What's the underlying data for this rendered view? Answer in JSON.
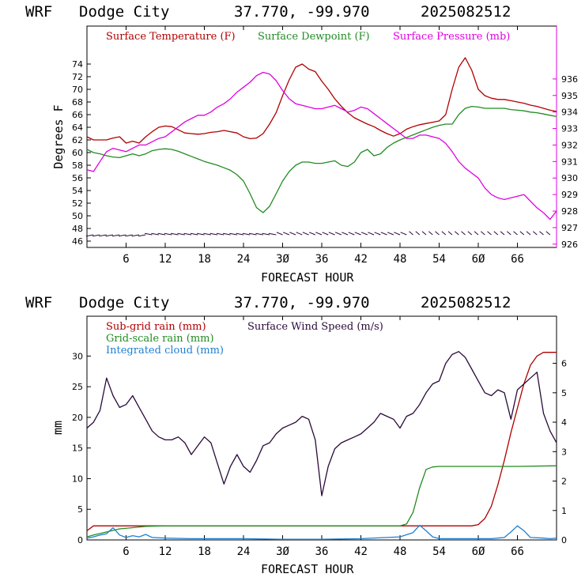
{
  "top_header": {
    "model": "WRF",
    "station": "Dodge City",
    "coords": "37.770, -99.970",
    "init": "2025082512"
  },
  "bottom_header": {
    "model": "WRF",
    "station": "Dodge City",
    "coords": "37.770, -99.970",
    "init": "2025082512"
  },
  "colors": {
    "temperature": "#b00000",
    "dewpoint": "#228b22",
    "pressure": "#e000e0",
    "wind": "#2a0a3a",
    "subgrid_rain": "#b00000",
    "gridscale_rain": "#228b22",
    "cloud": "#1e7fd0"
  },
  "chart_data": [
    {
      "type": "line",
      "xlabel": "FORECAST HOUR",
      "ylabel": "Degrees F",
      "xlim": [
        0,
        72
      ],
      "ylim": [
        45,
        80
      ],
      "y2lim": [
        925.8,
        939.2
      ],
      "xticks": [
        6,
        12,
        18,
        24,
        30,
        36,
        42,
        48,
        54,
        60,
        66
      ],
      "yticks": [
        46,
        48,
        50,
        52,
        54,
        56,
        58,
        60,
        62,
        64,
        66,
        68,
        70,
        72,
        74
      ],
      "y2ticks": [
        926,
        927,
        928,
        929,
        930,
        931,
        932,
        933,
        934,
        935,
        936
      ],
      "wind_barbs": "row of wind barbs along the bottom (y ~ 47 F)",
      "series": [
        {
          "name": "Surface Temperature (F)",
          "axis": "left",
          "x": [
            0,
            1,
            2,
            3,
            4,
            5,
            6,
            7,
            8,
            9,
            10,
            11,
            12,
            13,
            14,
            15,
            16,
            17,
            18,
            19,
            20,
            21,
            22,
            23,
            24,
            25,
            26,
            27,
            28,
            29,
            30,
            31,
            32,
            33,
            34,
            35,
            36,
            37,
            38,
            39,
            40,
            41,
            42,
            43,
            44,
            45,
            46,
            47,
            48,
            49,
            50,
            51,
            52,
            53,
            54,
            55,
            56,
            57,
            58,
            59,
            60,
            61,
            62,
            63,
            64,
            65,
            66,
            67,
            68,
            69,
            70,
            71,
            72
          ],
          "values": [
            62.5,
            62,
            62,
            62,
            62.3,
            62.5,
            61.5,
            61.8,
            61.5,
            62.5,
            63.3,
            64,
            64.2,
            64.1,
            63.6,
            63.1,
            63,
            62.9,
            63,
            63.2,
            63.3,
            63.5,
            63.3,
            63.1,
            62.5,
            62.2,
            62.3,
            63,
            64.5,
            66.3,
            69,
            71.5,
            73.5,
            74,
            73.2,
            72.8,
            71.3,
            70,
            68.5,
            67.3,
            66.3,
            65.5,
            65,
            64.5,
            64.1,
            63.5,
            63,
            62.6,
            63,
            63.7,
            64.1,
            64.4,
            64.6,
            64.8,
            65,
            66,
            70,
            73.5,
            75,
            73,
            70,
            69,
            68.6,
            68.4,
            68.4,
            68.2,
            68,
            67.8,
            67.5,
            67.3,
            67,
            66.7,
            66.5
          ]
        },
        {
          "name": "Surface Dewpoint (F)",
          "axis": "left",
          "x": [
            0,
            1,
            2,
            3,
            4,
            5,
            6,
            7,
            8,
            9,
            10,
            11,
            12,
            13,
            14,
            15,
            16,
            17,
            18,
            19,
            20,
            21,
            22,
            23,
            24,
            25,
            26,
            27,
            28,
            29,
            30,
            31,
            32,
            33,
            34,
            35,
            36,
            37,
            38,
            39,
            40,
            41,
            42,
            43,
            44,
            45,
            46,
            47,
            48,
            49,
            50,
            51,
            52,
            53,
            54,
            55,
            56,
            57,
            58,
            59,
            60,
            61,
            62,
            63,
            64,
            65,
            66,
            67,
            68,
            69,
            70,
            71,
            72
          ],
          "values": [
            60.5,
            60,
            59.8,
            59.5,
            59.3,
            59.2,
            59.5,
            59.8,
            59.5,
            59.8,
            60.3,
            60.5,
            60.6,
            60.5,
            60.2,
            59.8,
            59.4,
            59,
            58.6,
            58.3,
            58,
            57.6,
            57.2,
            56.5,
            55.5,
            53.5,
            51.3,
            50.5,
            51.5,
            53.5,
            55.5,
            57,
            58,
            58.5,
            58.5,
            58.3,
            58.3,
            58.5,
            58.7,
            58,
            57.8,
            58.5,
            60,
            60.5,
            59.5,
            59.8,
            60.8,
            61.5,
            62,
            62.4,
            62.8,
            63.2,
            63.6,
            64,
            64.3,
            64.5,
            64.5,
            66,
            67,
            67.3,
            67.2,
            67,
            67,
            67,
            67,
            66.8,
            66.7,
            66.6,
            66.4,
            66.3,
            66.1,
            65.9,
            65.7
          ]
        },
        {
          "name": "Surface Pressure (mb)",
          "axis": "right",
          "x": [
            0,
            1,
            2,
            3,
            4,
            5,
            6,
            7,
            8,
            9,
            10,
            11,
            12,
            13,
            14,
            15,
            16,
            17,
            18,
            19,
            20,
            21,
            22,
            23,
            24,
            25,
            26,
            27,
            28,
            29,
            30,
            31,
            32,
            33,
            34,
            35,
            36,
            37,
            38,
            39,
            40,
            41,
            42,
            43,
            44,
            45,
            46,
            47,
            48,
            49,
            50,
            51,
            52,
            53,
            54,
            55,
            56,
            57,
            58,
            59,
            60,
            61,
            62,
            63,
            64,
            65,
            66,
            67,
            68,
            69,
            70,
            71,
            72
          ],
          "values": [
            930.5,
            930.4,
            931,
            931.6,
            931.8,
            931.7,
            931.6,
            931.8,
            932,
            932,
            932.2,
            932.4,
            932.5,
            932.8,
            933.1,
            933.4,
            933.6,
            933.8,
            933.8,
            934,
            934.3,
            934.5,
            934.8,
            935.2,
            935.5,
            935.8,
            936.2,
            936.4,
            936.3,
            935.9,
            935.3,
            934.8,
            934.5,
            934.4,
            934.3,
            934.2,
            934.2,
            934.3,
            934.4,
            934.2,
            934,
            934.1,
            934.3,
            934.2,
            933.9,
            933.6,
            933.3,
            933,
            932.7,
            932.4,
            932.4,
            932.6,
            932.6,
            932.5,
            932.4,
            932.1,
            931.6,
            931,
            930.6,
            930.3,
            930,
            929.4,
            929,
            928.8,
            928.7,
            928.8,
            928.9,
            929,
            928.6,
            928.2,
            927.9,
            927.5,
            928
          ]
        }
      ]
    },
    {
      "type": "line",
      "xlabel": "FORECAST HOUR",
      "ylabel": "mm",
      "xlim": [
        0,
        72
      ],
      "ylim": [
        0,
        36.5
      ],
      "y2lim": [
        0,
        7.6
      ],
      "xticks": [
        6,
        12,
        18,
        24,
        30,
        36,
        42,
        48,
        54,
        60,
        66
      ],
      "yticks": [
        0,
        5,
        10,
        15,
        20,
        25,
        30
      ],
      "y2ticks": [
        0,
        1,
        2,
        3,
        4,
        5,
        6
      ],
      "series": [
        {
          "name": "Sub-grid rain (mm)",
          "axis": "left",
          "x": [
            0,
            1,
            2,
            3,
            6,
            10,
            20,
            30,
            40,
            48,
            56,
            59,
            60,
            61,
            62,
            63,
            64,
            65,
            66,
            67,
            68,
            69,
            70,
            71,
            72
          ],
          "values": [
            1.5,
            2.3,
            2.3,
            2.3,
            2.3,
            2.3,
            2.3,
            2.3,
            2.3,
            2.3,
            2.3,
            2.3,
            2.5,
            3.5,
            5.5,
            9,
            13,
            17.5,
            21.5,
            25.5,
            28.5,
            30,
            30.6,
            30.6,
            30.6
          ]
        },
        {
          "name": "Grid-scale rain (mm)",
          "axis": "left",
          "x": [
            0,
            1,
            3,
            5,
            7,
            9,
            12,
            20,
            30,
            40,
            48,
            49,
            50,
            51,
            52,
            53,
            54,
            56,
            60,
            66,
            72
          ],
          "values": [
            0.5,
            0.8,
            1.3,
            1.8,
            2,
            2.2,
            2.3,
            2.3,
            2.3,
            2.3,
            2.3,
            2.6,
            4.5,
            8.5,
            11.5,
            11.9,
            12,
            12,
            12,
            12,
            12.1
          ]
        },
        {
          "name": "Integrated cloud (mm)",
          "axis": "left",
          "x": [
            0,
            1,
            2,
            3,
            4,
            5,
            6,
            7,
            8,
            9,
            10,
            12,
            16,
            20,
            24,
            30,
            36,
            42,
            46,
            48,
            50,
            51,
            52,
            53,
            54,
            58,
            62,
            64,
            65,
            66,
            67,
            68,
            70,
            71,
            72
          ],
          "values": [
            0.3,
            0.5,
            0.8,
            1,
            2,
            0.8,
            0.4,
            0.7,
            0.5,
            0.9,
            0.4,
            0.3,
            0.2,
            0.2,
            0.2,
            0.1,
            0.1,
            0.2,
            0.4,
            0.5,
            1.2,
            2.4,
            1.5,
            0.5,
            0.2,
            0.2,
            0.2,
            0.4,
            1.3,
            2.3,
            1.5,
            0.4,
            0.3,
            0.2,
            0.3
          ]
        },
        {
          "name": "Surface Wind Speed (m/s)",
          "axis": "right",
          "x": [
            0,
            1,
            2,
            3,
            4,
            5,
            6,
            7,
            8,
            9,
            10,
            11,
            12,
            13,
            14,
            15,
            16,
            17,
            18,
            19,
            20,
            21,
            22,
            23,
            24,
            25,
            26,
            27,
            28,
            29,
            30,
            31,
            32,
            33,
            34,
            35,
            36,
            37,
            38,
            39,
            40,
            41,
            42,
            43,
            44,
            45,
            46,
            47,
            48,
            49,
            50,
            51,
            52,
            53,
            54,
            55,
            56,
            57,
            58,
            59,
            60,
            61,
            62,
            63,
            64,
            65,
            66,
            67,
            68,
            69,
            70,
            71,
            72
          ],
          "values": [
            3.8,
            4,
            4.4,
            5.5,
            4.9,
            4.5,
            4.6,
            4.9,
            4.5,
            4.1,
            3.7,
            3.5,
            3.4,
            3.4,
            3.5,
            3.3,
            2.9,
            3.2,
            3.5,
            3.3,
            2.6,
            1.9,
            2.5,
            2.9,
            2.5,
            2.3,
            2.7,
            3.2,
            3.3,
            3.6,
            3.8,
            3.9,
            4,
            4.2,
            4.1,
            3.4,
            1.5,
            2.5,
            3.1,
            3.3,
            3.4,
            3.5,
            3.6,
            3.8,
            4,
            4.3,
            4.2,
            4.1,
            3.8,
            4.2,
            4.3,
            4.6,
            5,
            5.3,
            5.4,
            6,
            6.3,
            6.4,
            6.2,
            5.8,
            5.4,
            5,
            4.9,
            5.1,
            5,
            4.1,
            5.1,
            5.3,
            5.5,
            5.7,
            4.3,
            3.7,
            3.3
          ]
        }
      ]
    }
  ]
}
